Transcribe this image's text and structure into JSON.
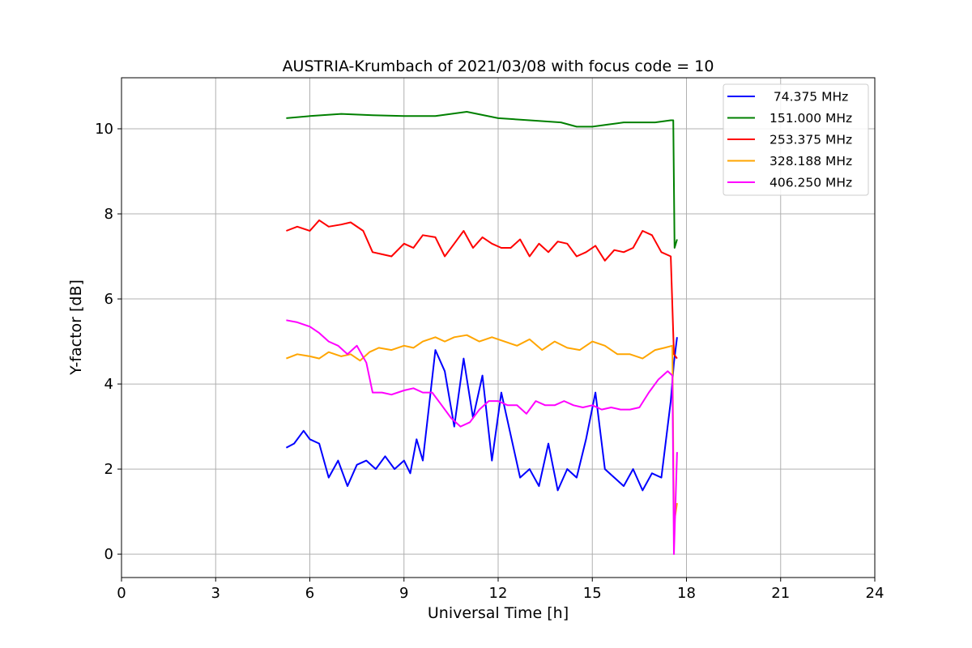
{
  "chart_data": {
    "type": "line",
    "title": "AUSTRIA-Krumbach of 2021/03/08 with focus code = 10",
    "xlabel": "Universal Time [h]",
    "ylabel": "Y-factor [dB]",
    "xlim": [
      0,
      24
    ],
    "ylim": [
      -0.55,
      11.2
    ],
    "xticks": [
      0,
      3,
      6,
      9,
      12,
      15,
      18,
      21,
      24
    ],
    "yticks": [
      0,
      2,
      4,
      6,
      8,
      10
    ],
    "grid": true,
    "legend_position": "top-right",
    "series": [
      {
        "name": " 74.375 MHz",
        "color": "#0000ff",
        "x": [
          5.25,
          5.5,
          5.8,
          6.0,
          6.3,
          6.6,
          6.9,
          7.2,
          7.5,
          7.8,
          8.1,
          8.4,
          8.7,
          9.0,
          9.2,
          9.4,
          9.6,
          9.8,
          10.0,
          10.3,
          10.6,
          10.9,
          11.2,
          11.5,
          11.8,
          12.1,
          12.4,
          12.7,
          13.0,
          13.3,
          13.6,
          13.9,
          14.2,
          14.5,
          14.8,
          15.1,
          15.4,
          15.7,
          16.0,
          16.3,
          16.6,
          16.9,
          17.2,
          17.5,
          17.6,
          17.7
        ],
        "values": [
          2.5,
          2.6,
          2.9,
          2.7,
          2.6,
          1.8,
          2.2,
          1.6,
          2.1,
          2.2,
          2.0,
          2.3,
          2.0,
          2.2,
          1.9,
          2.7,
          2.2,
          3.5,
          4.8,
          4.3,
          3.0,
          4.6,
          3.2,
          4.2,
          2.2,
          3.8,
          2.8,
          1.8,
          2.0,
          1.6,
          2.6,
          1.5,
          2.0,
          1.8,
          2.7,
          3.8,
          2.0,
          1.8,
          1.6,
          2.0,
          1.5,
          1.9,
          1.8,
          3.6,
          4.5,
          5.1
        ]
      },
      {
        "name": "151.000 MHz",
        "color": "#008000",
        "x": [
          5.25,
          6.0,
          7.0,
          8.0,
          9.0,
          10.0,
          11.0,
          12.0,
          13.0,
          14.0,
          14.5,
          15.0,
          15.5,
          16.0,
          16.5,
          17.0,
          17.5,
          17.58,
          17.62,
          17.7
        ],
        "values": [
          10.25,
          10.3,
          10.35,
          10.32,
          10.3,
          10.3,
          10.4,
          10.25,
          10.2,
          10.15,
          10.05,
          10.05,
          10.1,
          10.15,
          10.15,
          10.15,
          10.2,
          10.2,
          7.2,
          7.4
        ]
      },
      {
        "name": "253.375 MHz",
        "color": "#ff0000",
        "x": [
          5.25,
          5.6,
          6.0,
          6.3,
          6.6,
          7.0,
          7.3,
          7.7,
          8.0,
          8.3,
          8.6,
          9.0,
          9.3,
          9.6,
          10.0,
          10.3,
          10.6,
          10.9,
          11.2,
          11.5,
          11.8,
          12.1,
          12.4,
          12.7,
          13.0,
          13.3,
          13.6,
          13.9,
          14.2,
          14.5,
          14.8,
          15.1,
          15.4,
          15.7,
          16.0,
          16.3,
          16.6,
          16.9,
          17.2,
          17.5,
          17.6,
          17.7
        ],
        "values": [
          7.6,
          7.7,
          7.6,
          7.85,
          7.7,
          7.75,
          7.8,
          7.6,
          7.1,
          7.05,
          7.0,
          7.3,
          7.2,
          7.5,
          7.45,
          7.0,
          7.3,
          7.6,
          7.2,
          7.45,
          7.3,
          7.2,
          7.2,
          7.4,
          7.0,
          7.3,
          7.1,
          7.35,
          7.3,
          7.0,
          7.1,
          7.25,
          6.9,
          7.15,
          7.1,
          7.2,
          7.6,
          7.5,
          7.1,
          7.0,
          4.7,
          4.6
        ]
      },
      {
        "name": "328.188 MHz",
        "color": "#ffa500",
        "x": [
          5.25,
          5.6,
          6.0,
          6.3,
          6.6,
          7.0,
          7.3,
          7.6,
          7.9,
          8.2,
          8.6,
          9.0,
          9.3,
          9.6,
          10.0,
          10.3,
          10.6,
          11.0,
          11.4,
          11.8,
          12.2,
          12.6,
          13.0,
          13.4,
          13.8,
          14.2,
          14.6,
          15.0,
          15.4,
          15.8,
          16.2,
          16.6,
          17.0,
          17.3,
          17.55,
          17.6,
          17.7
        ],
        "values": [
          4.6,
          4.7,
          4.65,
          4.6,
          4.75,
          4.65,
          4.7,
          4.55,
          4.75,
          4.85,
          4.8,
          4.9,
          4.85,
          5.0,
          5.1,
          5.0,
          5.1,
          5.15,
          5.0,
          5.1,
          5.0,
          4.9,
          5.05,
          4.8,
          5.0,
          4.85,
          4.8,
          5.0,
          4.9,
          4.7,
          4.7,
          4.6,
          4.8,
          4.85,
          4.9,
          0.7,
          1.2
        ]
      },
      {
        "name": "406.250 MHz",
        "color": "#ff00ff",
        "x": [
          5.25,
          5.6,
          6.0,
          6.3,
          6.6,
          6.9,
          7.2,
          7.5,
          7.8,
          8.0,
          8.3,
          8.6,
          9.0,
          9.3,
          9.6,
          9.9,
          10.2,
          10.5,
          10.8,
          11.1,
          11.4,
          11.7,
          12.0,
          12.3,
          12.6,
          12.9,
          13.2,
          13.5,
          13.8,
          14.1,
          14.4,
          14.7,
          15.0,
          15.3,
          15.6,
          15.9,
          16.2,
          16.5,
          16.8,
          17.1,
          17.4,
          17.55,
          17.6,
          17.7
        ],
        "values": [
          5.5,
          5.45,
          5.35,
          5.2,
          5.0,
          4.9,
          4.7,
          4.9,
          4.5,
          3.8,
          3.8,
          3.75,
          3.85,
          3.9,
          3.8,
          3.8,
          3.5,
          3.2,
          3.0,
          3.1,
          3.4,
          3.6,
          3.6,
          3.5,
          3.5,
          3.3,
          3.6,
          3.5,
          3.5,
          3.6,
          3.5,
          3.45,
          3.5,
          3.4,
          3.45,
          3.4,
          3.4,
          3.45,
          3.8,
          4.1,
          4.3,
          4.2,
          0.0,
          2.4
        ]
      }
    ]
  }
}
